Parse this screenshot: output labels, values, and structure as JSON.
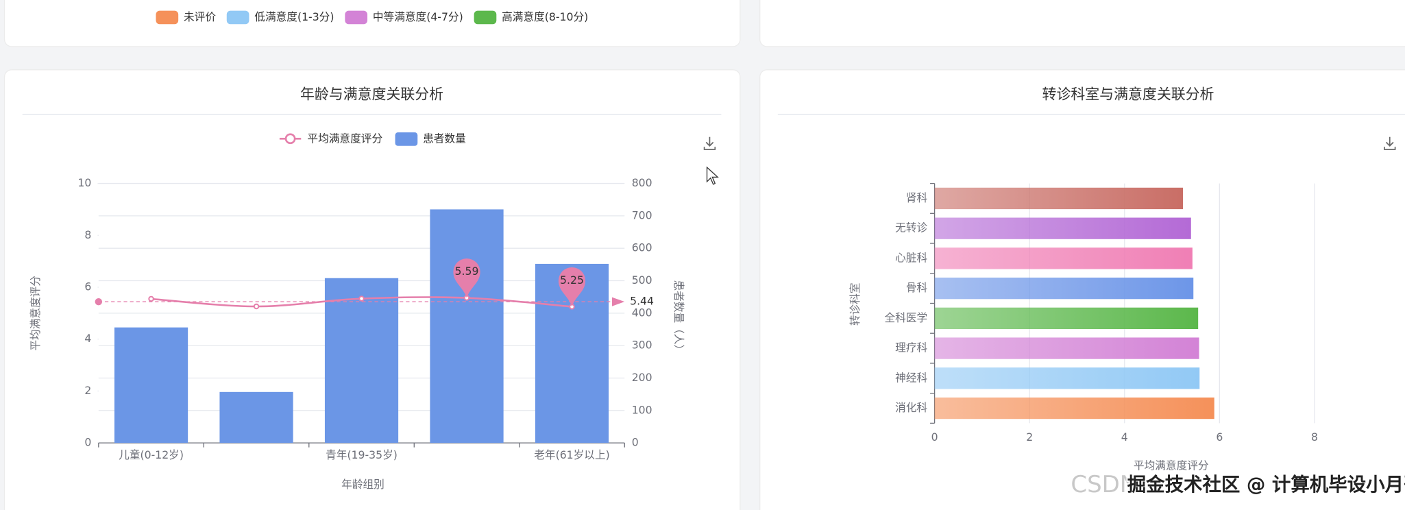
{
  "top_legend": {
    "items": [
      {
        "label": "未评价",
        "color": "#f5915a"
      },
      {
        "label": "低满意度(1-3分)",
        "color": "#92c9f5"
      },
      {
        "label": "中等满意度(4-7分)",
        "color": "#d383d6"
      },
      {
        "label": "高满意度(8-10分)",
        "color": "#5cb84c"
      }
    ]
  },
  "chart_data": [
    {
      "type": "combo",
      "title": "年龄与满意度关联分析",
      "categories": [
        "儿童(0-12岁)",
        null,
        "青年(19-35岁)",
        null,
        "老年(61岁以上)"
      ],
      "series": [
        {
          "name": "平均满意度评分",
          "type": "line",
          "color": "#e57fab",
          "values": [
            5.55,
            5.26,
            5.56,
            5.59,
            5.25
          ]
        },
        {
          "name": "患者数量",
          "type": "bar",
          "axis": "y2",
          "color": "#6b96e6",
          "values": [
            356,
            157,
            508,
            720,
            552
          ]
        }
      ],
      "ylim": [
        0,
        10
      ],
      "yticks": [
        0,
        2,
        4,
        6,
        8,
        10
      ],
      "y2lim": [
        0,
        800
      ],
      "y2ticks": [
        0,
        100,
        200,
        300,
        400,
        500,
        600,
        700,
        800
      ],
      "ylabel": "平均满意度评分",
      "y2label": "患者数量（人）",
      "xlabel": "年龄组别",
      "average_line": 5.44,
      "mark_points": [
        "max",
        "min"
      ],
      "grid": true
    },
    {
      "type": "hbar",
      "title": "转诊科室与满意度关联分析",
      "categories": [
        "肾科",
        "无转诊",
        "心脏科",
        "骨科",
        "全科医学",
        "理疗科",
        "神经科",
        "消化科"
      ],
      "values": [
        5.23,
        5.4,
        5.43,
        5.45,
        5.55,
        5.57,
        5.58,
        5.89
      ],
      "colors": [
        "#c96e66",
        "#b46ad6",
        "#f07fb5",
        "#6d96e8",
        "#5cb84c",
        "#d383d6",
        "#92c9f5",
        "#f5915a"
      ],
      "xlim": [
        0,
        10
      ],
      "xticks": [
        0,
        2,
        4,
        6,
        8
      ],
      "xlabel": "平均满意度评分",
      "ylabel": "转诊科室",
      "grid": true
    }
  ],
  "watermark": {
    "prefix": "CSDN",
    "text": "掘金技术社区 @ 计算机毕设小月哥"
  }
}
